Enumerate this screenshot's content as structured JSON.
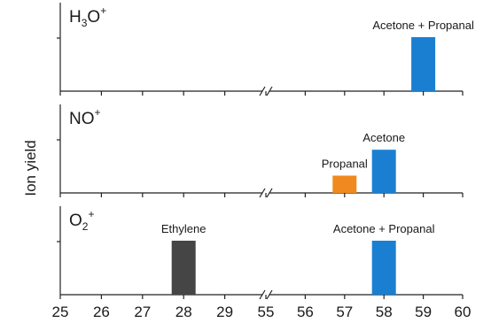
{
  "chart_data": {
    "type": "bar",
    "ylabel": "Ion yield",
    "x_ticks": [
      "25",
      "26",
      "27",
      "28",
      "29",
      "55",
      "56",
      "57",
      "58",
      "59",
      "60"
    ],
    "x_broken_axis": true,
    "segments": [
      [
        25,
        30
      ],
      [
        55,
        60
      ]
    ],
    "colors": {
      "Acetone": "#1a7fd1",
      "Propanal": "#f08a1e",
      "Ethylene": "#454545"
    },
    "panels": [
      {
        "label_main": "H",
        "label_sub": "3",
        "label_post": "O",
        "label_sup": "+",
        "bars": [
          {
            "x": 59,
            "value": 1.0,
            "label": "Acetone + Propanal",
            "color_key": "Acetone"
          }
        ]
      },
      {
        "label_main": "NO",
        "label_sub": "",
        "label_post": "",
        "label_sup": "+",
        "bars": [
          {
            "x": 57,
            "value": 0.32,
            "label": "Propanal",
            "color_key": "Propanal"
          },
          {
            "x": 58,
            "value": 0.8,
            "label": "Acetone",
            "color_key": "Acetone"
          }
        ]
      },
      {
        "label_main": "O",
        "label_sub": "2",
        "label_post": "",
        "label_sup": "+",
        "bars": [
          {
            "x": 28,
            "value": 1.0,
            "label": "Ethylene",
            "color_key": "Ethylene"
          },
          {
            "x": 58,
            "value": 1.0,
            "label": "Acetone + Propanal",
            "color_key": "Acetone"
          }
        ]
      }
    ]
  }
}
